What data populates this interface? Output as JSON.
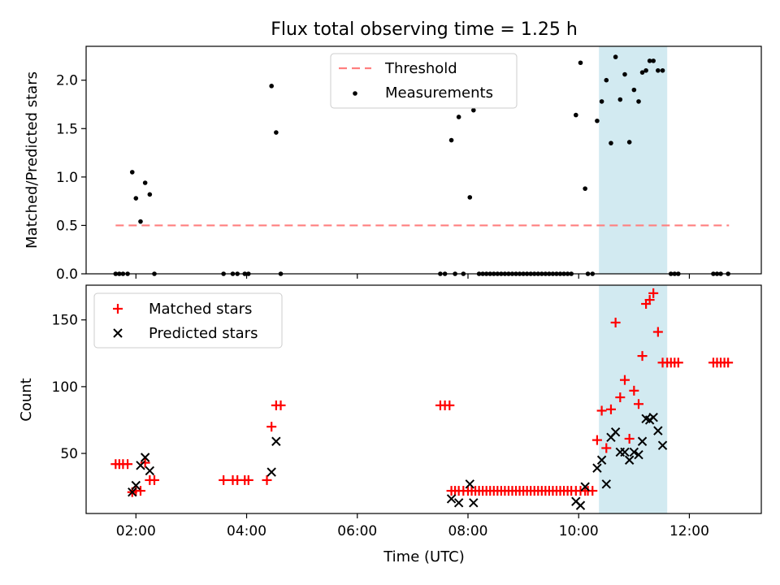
{
  "title": "Flux total observing time = 1.25 h",
  "chart_data": [
    {
      "type": "scatter",
      "ylabel": "Matched/Predicted stars",
      "xlim": [
        "01:06",
        "13:18"
      ],
      "ylim": [
        0,
        2.35
      ],
      "yticks": [
        0.0,
        0.5,
        1.0,
        1.5,
        2.0
      ],
      "xticks": [
        "02:00",
        "04:00",
        "06:00",
        "08:00",
        "10:00",
        "12:00"
      ],
      "shaded_span": {
        "x": [
          "10:22",
          "11:36"
        ],
        "color": "#add8e6"
      },
      "threshold": {
        "name": "Threshold",
        "y": 0.5,
        "x": [
          "01:38",
          "12:43"
        ],
        "color": "#ff7f7f"
      },
      "legend": {
        "position": "top-center"
      },
      "series": [
        {
          "name": "Measurements",
          "color": "#000000",
          "points": [
            {
              "x": "01:38",
              "y": 0
            },
            {
              "x": "01:42",
              "y": 0
            },
            {
              "x": "01:46",
              "y": 0
            },
            {
              "x": "01:51",
              "y": 0
            },
            {
              "x": "01:56",
              "y": 1.05
            },
            {
              "x": "02:00",
              "y": 0.78
            },
            {
              "x": "02:05",
              "y": 0.54
            },
            {
              "x": "02:10",
              "y": 0.94
            },
            {
              "x": "02:15",
              "y": 0.82
            },
            {
              "x": "02:20",
              "y": 0
            },
            {
              "x": "03:35",
              "y": 0
            },
            {
              "x": "03:45",
              "y": 0
            },
            {
              "x": "03:50",
              "y": 0
            },
            {
              "x": "03:58",
              "y": 0
            },
            {
              "x": "04:02",
              "y": 0
            },
            {
              "x": "04:27",
              "y": 1.94
            },
            {
              "x": "04:32",
              "y": 1.46
            },
            {
              "x": "04:37",
              "y": 0
            },
            {
              "x": "07:30",
              "y": 0
            },
            {
              "x": "07:35",
              "y": 0
            },
            {
              "x": "07:42",
              "y": 1.38
            },
            {
              "x": "07:46",
              "y": 0
            },
            {
              "x": "07:50",
              "y": 1.62
            },
            {
              "x": "07:55",
              "y": 0
            },
            {
              "x": "08:02",
              "y": 0.79
            },
            {
              "x": "08:06",
              "y": 1.69
            },
            {
              "x": "08:12",
              "y": 0
            },
            {
              "x": "08:16",
              "y": 0
            },
            {
              "x": "08:20",
              "y": 0
            },
            {
              "x": "08:24",
              "y": 0
            },
            {
              "x": "08:28",
              "y": 0
            },
            {
              "x": "08:32",
              "y": 0
            },
            {
              "x": "08:36",
              "y": 0
            },
            {
              "x": "08:40",
              "y": 0
            },
            {
              "x": "08:44",
              "y": 0
            },
            {
              "x": "08:48",
              "y": 0
            },
            {
              "x": "08:52",
              "y": 0
            },
            {
              "x": "08:56",
              "y": 0
            },
            {
              "x": "09:00",
              "y": 0
            },
            {
              "x": "09:04",
              "y": 0
            },
            {
              "x": "09:08",
              "y": 0
            },
            {
              "x": "09:12",
              "y": 0
            },
            {
              "x": "09:16",
              "y": 0
            },
            {
              "x": "09:20",
              "y": 0
            },
            {
              "x": "09:24",
              "y": 0
            },
            {
              "x": "09:28",
              "y": 0
            },
            {
              "x": "09:32",
              "y": 0
            },
            {
              "x": "09:36",
              "y": 0
            },
            {
              "x": "09:40",
              "y": 0
            },
            {
              "x": "09:44",
              "y": 0
            },
            {
              "x": "09:48",
              "y": 0
            },
            {
              "x": "09:52",
              "y": 0
            },
            {
              "x": "09:57",
              "y": 1.64
            },
            {
              "x": "10:02",
              "y": 2.18
            },
            {
              "x": "10:07",
              "y": 0.88
            },
            {
              "x": "10:10",
              "y": 0
            },
            {
              "x": "10:15",
              "y": 0
            },
            {
              "x": "10:20",
              "y": 1.58
            },
            {
              "x": "10:25",
              "y": 1.78
            },
            {
              "x": "10:30",
              "y": 2.0
            },
            {
              "x": "10:35",
              "y": 1.35
            },
            {
              "x": "10:40",
              "y": 2.24
            },
            {
              "x": "10:45",
              "y": 1.8
            },
            {
              "x": "10:50",
              "y": 2.06
            },
            {
              "x": "10:55",
              "y": 1.36
            },
            {
              "x": "11:00",
              "y": 1.9
            },
            {
              "x": "11:05",
              "y": 1.78
            },
            {
              "x": "11:09",
              "y": 2.08
            },
            {
              "x": "11:13",
              "y": 2.1
            },
            {
              "x": "11:17",
              "y": 2.2
            },
            {
              "x": "11:21",
              "y": 2.2
            },
            {
              "x": "11:26",
              "y": 2.1
            },
            {
              "x": "11:31",
              "y": 2.1
            },
            {
              "x": "11:40",
              "y": 0
            },
            {
              "x": "11:44",
              "y": 0
            },
            {
              "x": "11:48",
              "y": 0
            },
            {
              "x": "12:26",
              "y": 0
            },
            {
              "x": "12:30",
              "y": 0
            },
            {
              "x": "12:34",
              "y": 0
            },
            {
              "x": "12:42",
              "y": 0
            }
          ]
        }
      ]
    },
    {
      "type": "scatter",
      "xlabel": "Time (UTC)",
      "ylabel": "Count",
      "xlim": [
        "01:06",
        "13:18"
      ],
      "ylim": [
        5,
        176
      ],
      "yticks": [
        50,
        100,
        150
      ],
      "xticks": [
        "02:00",
        "04:00",
        "06:00",
        "08:00",
        "10:00",
        "12:00"
      ],
      "shaded_span": {
        "x": [
          "10:22",
          "11:36"
        ],
        "color": "#add8e6"
      },
      "legend": {
        "position": "top-left"
      },
      "series": [
        {
          "name": "Matched stars",
          "color": "#ff0000",
          "marker": "+",
          "points": [
            {
              "x": "01:38",
              "y": 42
            },
            {
              "x": "01:42",
              "y": 42
            },
            {
              "x": "01:46",
              "y": 42
            },
            {
              "x": "01:51",
              "y": 42
            },
            {
              "x": "01:56",
              "y": 21
            },
            {
              "x": "02:00",
              "y": 22
            },
            {
              "x": "02:05",
              "y": 22
            },
            {
              "x": "02:10",
              "y": 43
            },
            {
              "x": "02:15",
              "y": 30
            },
            {
              "x": "02:20",
              "y": 30
            },
            {
              "x": "03:35",
              "y": 30
            },
            {
              "x": "03:45",
              "y": 30
            },
            {
              "x": "03:50",
              "y": 30
            },
            {
              "x": "03:58",
              "y": 30
            },
            {
              "x": "04:02",
              "y": 30
            },
            {
              "x": "04:22",
              "y": 30
            },
            {
              "x": "04:27",
              "y": 70
            },
            {
              "x": "04:32",
              "y": 86
            },
            {
              "x": "04:37",
              "y": 86
            },
            {
              "x": "07:30",
              "y": 86
            },
            {
              "x": "07:35",
              "y": 86
            },
            {
              "x": "07:40",
              "y": 86
            },
            {
              "x": "07:42",
              "y": 22
            },
            {
              "x": "07:46",
              "y": 22
            },
            {
              "x": "07:50",
              "y": 22
            },
            {
              "x": "07:55",
              "y": 22
            },
            {
              "x": "08:00",
              "y": 22
            },
            {
              "x": "08:04",
              "y": 22
            },
            {
              "x": "08:08",
              "y": 22
            },
            {
              "x": "08:12",
              "y": 22
            },
            {
              "x": "08:16",
              "y": 22
            },
            {
              "x": "08:20",
              "y": 22
            },
            {
              "x": "08:24",
              "y": 22
            },
            {
              "x": "08:28",
              "y": 22
            },
            {
              "x": "08:32",
              "y": 22
            },
            {
              "x": "08:36",
              "y": 22
            },
            {
              "x": "08:40",
              "y": 22
            },
            {
              "x": "08:44",
              "y": 22
            },
            {
              "x": "08:48",
              "y": 22
            },
            {
              "x": "08:52",
              "y": 22
            },
            {
              "x": "08:56",
              "y": 22
            },
            {
              "x": "09:00",
              "y": 22
            },
            {
              "x": "09:04",
              "y": 22
            },
            {
              "x": "09:08",
              "y": 22
            },
            {
              "x": "09:12",
              "y": 22
            },
            {
              "x": "09:16",
              "y": 22
            },
            {
              "x": "09:20",
              "y": 22
            },
            {
              "x": "09:24",
              "y": 22
            },
            {
              "x": "09:28",
              "y": 22
            },
            {
              "x": "09:32",
              "y": 22
            },
            {
              "x": "09:36",
              "y": 22
            },
            {
              "x": "09:40",
              "y": 22
            },
            {
              "x": "09:44",
              "y": 22
            },
            {
              "x": "09:48",
              "y": 22
            },
            {
              "x": "09:52",
              "y": 22
            },
            {
              "x": "09:57",
              "y": 22
            },
            {
              "x": "10:02",
              "y": 22
            },
            {
              "x": "10:07",
              "y": 22
            },
            {
              "x": "10:10",
              "y": 22
            },
            {
              "x": "10:15",
              "y": 22
            },
            {
              "x": "10:20",
              "y": 60
            },
            {
              "x": "10:25",
              "y": 82
            },
            {
              "x": "10:30",
              "y": 54
            },
            {
              "x": "10:35",
              "y": 83
            },
            {
              "x": "10:40",
              "y": 148
            },
            {
              "x": "10:45",
              "y": 92
            },
            {
              "x": "10:50",
              "y": 105
            },
            {
              "x": "10:55",
              "y": 61
            },
            {
              "x": "11:00",
              "y": 97
            },
            {
              "x": "11:05",
              "y": 87
            },
            {
              "x": "11:09",
              "y": 123
            },
            {
              "x": "11:13",
              "y": 162
            },
            {
              "x": "11:17",
              "y": 165
            },
            {
              "x": "11:21",
              "y": 170
            },
            {
              "x": "11:26",
              "y": 141
            },
            {
              "x": "11:31",
              "y": 118
            },
            {
              "x": "11:36",
              "y": 118
            },
            {
              "x": "11:40",
              "y": 118
            },
            {
              "x": "11:44",
              "y": 118
            },
            {
              "x": "11:48",
              "y": 118
            },
            {
              "x": "12:26",
              "y": 118
            },
            {
              "x": "12:30",
              "y": 118
            },
            {
              "x": "12:34",
              "y": 118
            },
            {
              "x": "12:38",
              "y": 118
            },
            {
              "x": "12:42",
              "y": 118
            }
          ]
        },
        {
          "name": "Predicted stars",
          "color": "#000000",
          "marker": "x",
          "points": [
            {
              "x": "01:56",
              "y": 21
            },
            {
              "x": "02:00",
              "y": 26
            },
            {
              "x": "02:05",
              "y": 41
            },
            {
              "x": "02:10",
              "y": 47
            },
            {
              "x": "02:15",
              "y": 37
            },
            {
              "x": "04:27",
              "y": 36
            },
            {
              "x": "04:32",
              "y": 59
            },
            {
              "x": "07:42",
              "y": 16
            },
            {
              "x": "07:50",
              "y": 13
            },
            {
              "x": "08:02",
              "y": 27
            },
            {
              "x": "08:06",
              "y": 13
            },
            {
              "x": "09:57",
              "y": 14
            },
            {
              "x": "10:02",
              "y": 11
            },
            {
              "x": "10:07",
              "y": 25
            },
            {
              "x": "10:20",
              "y": 39
            },
            {
              "x": "10:25",
              "y": 45
            },
            {
              "x": "10:30",
              "y": 27
            },
            {
              "x": "10:35",
              "y": 62
            },
            {
              "x": "10:40",
              "y": 66
            },
            {
              "x": "10:45",
              "y": 51
            },
            {
              "x": "10:50",
              "y": 51
            },
            {
              "x": "10:55",
              "y": 45
            },
            {
              "x": "11:00",
              "y": 51
            },
            {
              "x": "11:05",
              "y": 49
            },
            {
              "x": "11:09",
              "y": 59
            },
            {
              "x": "11:13",
              "y": 76
            },
            {
              "x": "11:17",
              "y": 75
            },
            {
              "x": "11:21",
              "y": 77
            },
            {
              "x": "11:26",
              "y": 67
            },
            {
              "x": "11:31",
              "y": 56
            }
          ]
        }
      ]
    }
  ]
}
